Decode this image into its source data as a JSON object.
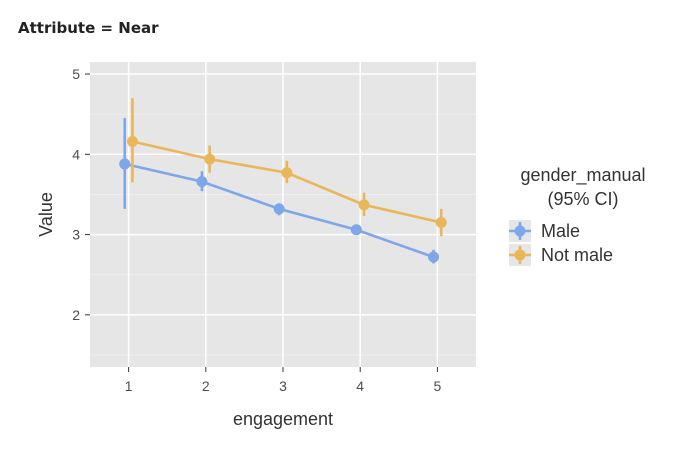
{
  "header": {
    "title": "Attribute = Near"
  },
  "chart_data": {
    "type": "line",
    "title": "Attribute = Near",
    "xlabel": "engagement",
    "ylabel": "Value",
    "x": [
      1,
      2,
      3,
      4,
      5
    ],
    "xlim": [
      0.5,
      5.5
    ],
    "ylim": [
      1.35,
      5.15
    ],
    "yticks": [
      2,
      3,
      4,
      5
    ],
    "xticks": [
      1,
      2,
      3,
      4,
      5
    ],
    "grid": true,
    "legend": {
      "title_line1": "gender_manual",
      "title_line2": "(95% CI)",
      "placement": "right"
    },
    "series": [
      {
        "name": "Male",
        "color": "#7ea6e8",
        "values": [
          3.88,
          3.66,
          3.32,
          3.06,
          2.72
        ],
        "ci_low": [
          3.32,
          3.54,
          3.24,
          3.01,
          2.64
        ],
        "ci_high": [
          4.45,
          3.79,
          3.39,
          3.11,
          2.81
        ]
      },
      {
        "name": "Not male",
        "color": "#e9b75a",
        "values": [
          4.16,
          3.94,
          3.77,
          3.37,
          3.15
        ],
        "ci_low": [
          3.65,
          3.77,
          3.64,
          3.23,
          2.98
        ],
        "ci_high": [
          4.7,
          4.11,
          3.92,
          3.52,
          3.32
        ]
      }
    ]
  }
}
